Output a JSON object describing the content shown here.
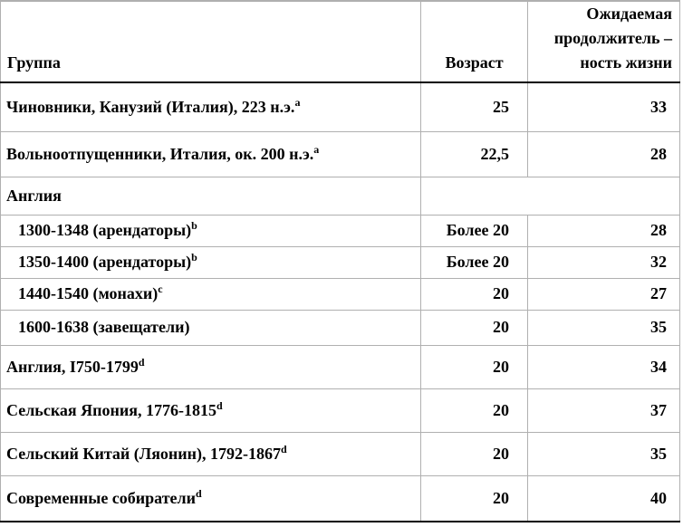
{
  "table": {
    "header": {
      "col1": "Группа",
      "col2": "Возраст",
      "col3_lines": [
        "Ожидаемая",
        "продолжитель –",
        "ность жизни"
      ]
    },
    "rows": [
      {
        "group": "Чиновники, Канузий (Италия), 223 н.э.",
        "sup": "a",
        "age": "25",
        "life": "33"
      },
      {
        "group": "Вольноотпущенники, Италия, ок. 200 н.э.",
        "sup": "a",
        "age": "22,5",
        "life": "28"
      },
      {
        "group": "Англия",
        "sup": "",
        "age": "",
        "life": ""
      },
      {
        "group": "1300-1348 (арендаторы)",
        "sup": "b",
        "age": "Более 20",
        "life": "28"
      },
      {
        "group": "1350-1400 (арендаторы)",
        "sup": "b",
        "age": "Более 20",
        "life": "32"
      },
      {
        "group": "1440-1540 (монахи)",
        "sup": "c",
        "age": "20",
        "life": "27"
      },
      {
        "group": "1600-1638 (завещатели)",
        "sup": "",
        "age": "20",
        "life": "35"
      },
      {
        "group": "Англия, I750-1799",
        "sup": "d",
        "age": "20",
        "life": "34"
      },
      {
        "group": "Сельская Япония, 1776-1815",
        "sup": "d",
        "age": "20",
        "life": "37"
      },
      {
        "group": "Сельский Китай (Ляонин), 1792-1867",
        "sup": "d",
        "age": "20",
        "life": "35"
      },
      {
        "group": "Современные собиратели",
        "sup": "d",
        "age": "20",
        "life": "40"
      }
    ],
    "colors": {
      "grid_light": "#b0b0b0",
      "grid_strong": "#000000",
      "text": "#000000",
      "background": "#ffffff"
    }
  }
}
